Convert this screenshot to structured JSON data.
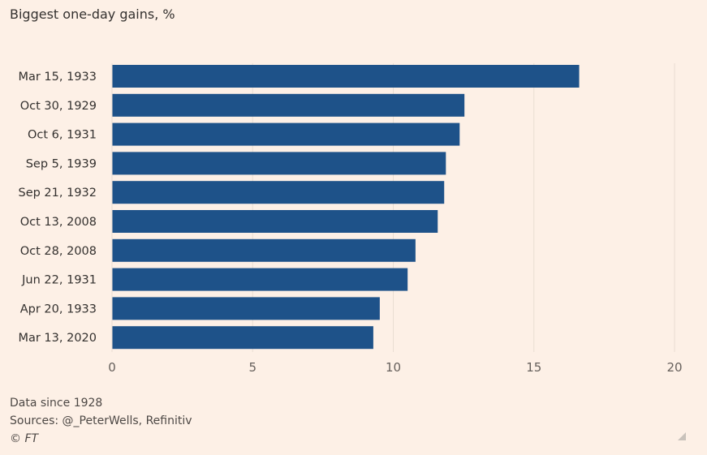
{
  "chart_data": {
    "type": "bar",
    "orientation": "horizontal",
    "title": "Biggest one-day gains, %",
    "categories": [
      "Mar 15, 1933",
      "Oct 30, 1929",
      "Oct 6, 1931",
      "Sep 5, 1939",
      "Sep 21, 1932",
      "Oct 13, 2008",
      "Oct 28, 2008",
      "Jun 22, 1931",
      "Apr 20, 1933",
      "Mar 13, 2020"
    ],
    "values": [
      16.61,
      12.53,
      12.36,
      11.87,
      11.81,
      11.58,
      10.79,
      10.51,
      9.52,
      9.29
    ],
    "xlim": [
      0,
      20
    ],
    "xticks": [
      "0",
      "5",
      "10",
      "15",
      "20"
    ],
    "grid": true,
    "bar_color": "#1e5289"
  },
  "notes": {
    "line1": "Data since 1928",
    "line2": "Sources: @_PeterWells, Refinitiv",
    "copyright": "© FT"
  },
  "colors": {
    "background": "#fdf0e6"
  }
}
